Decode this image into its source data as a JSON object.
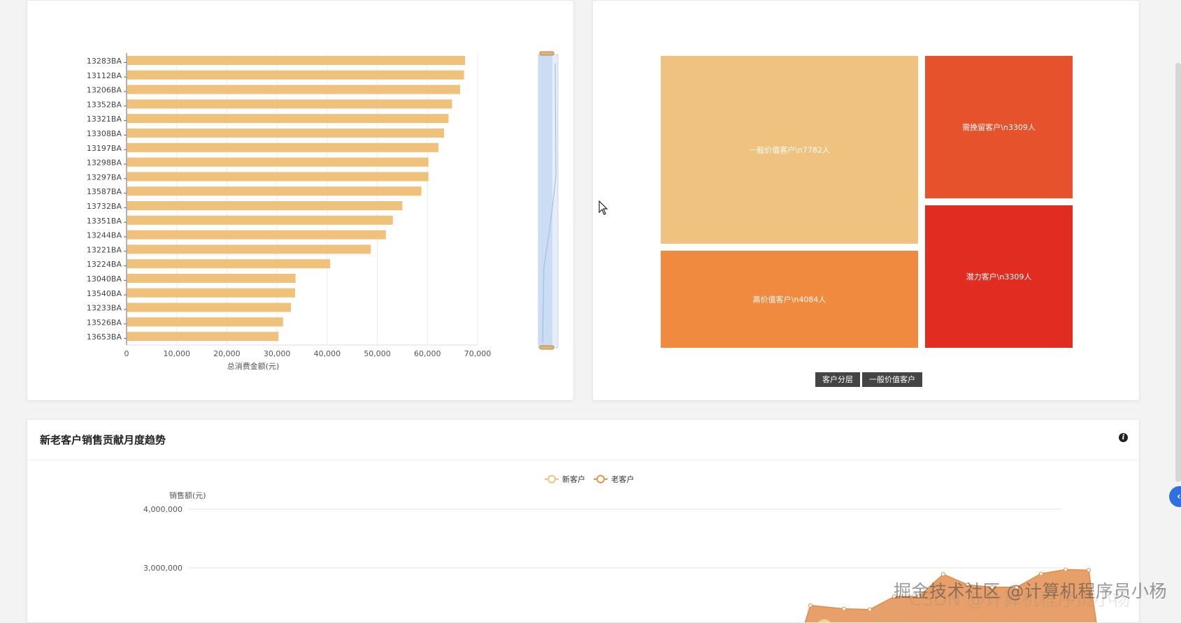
{
  "bar_card": {
    "chart_data": {
      "type": "bar",
      "orientation": "horizontal",
      "categories": [
        "13283BA",
        "13112BA",
        "13206BA",
        "13352BA",
        "13321BA",
        "13308BA",
        "13197BA",
        "13298BA",
        "13297BA",
        "13587BA",
        "13732BA",
        "13351BA",
        "13244BA",
        "13221BA",
        "13224BA",
        "13040BA",
        "13540BA",
        "13233BA",
        "13526BA",
        "13653BA"
      ],
      "values": [
        67500,
        67300,
        66500,
        64900,
        64200,
        63300,
        62200,
        60200,
        60200,
        58800,
        55000,
        53100,
        51700,
        48700,
        40600,
        33700,
        33600,
        32800,
        31200,
        30300
      ],
      "xlabel": "总消费金额(元)",
      "xlim": [
        0,
        70000
      ],
      "xticks": [
        "0",
        "10,000",
        "20,000",
        "30,000",
        "40,000",
        "50,000",
        "60,000",
        "70,000"
      ],
      "grid": true,
      "color": "#efc17a",
      "datazoom": true
    }
  },
  "treemap_card": {
    "chart_data": {
      "type": "treemap",
      "items": [
        {
          "label": "一般价值客户\\n7782人",
          "value": 7782,
          "color": "#f0c27f"
        },
        {
          "label": "需挽留客户\\n3309人",
          "value": 3309,
          "color": "#e5522b"
        },
        {
          "label": "高价值客户\\n4084人",
          "value": 4084,
          "color": "#f08a3e"
        },
        {
          "label": "潜力客户\\n3309人",
          "value": 3309,
          "color": "#e12c22"
        }
      ]
    },
    "breadcrumbs": [
      "客户分层",
      "一般价值客户"
    ]
  },
  "trend_card": {
    "title": "新老客户销售贡献月度趋势",
    "info_icon": "info-icon",
    "legend": [
      {
        "name": "新客户",
        "color": "#f0c27f"
      },
      {
        "name": "老客户",
        "color": "#e8954c"
      }
    ],
    "chart_data": {
      "type": "area",
      "ylabel": "销售额(元)",
      "yticks_visible": [
        "4,000,000",
        "3,000,000"
      ],
      "series": [
        {
          "name": "老客户",
          "values": [
            2360000,
            2300000,
            2290000,
            2510000,
            2510000,
            2890000,
            2710000,
            2670000,
            2670000,
            2900000,
            2970000,
            2960000
          ]
        }
      ]
    }
  },
  "watermark": "掘金技术社区 @计算机程序员小杨",
  "watermark_faint": "CSDN @计算机程序员小杨"
}
